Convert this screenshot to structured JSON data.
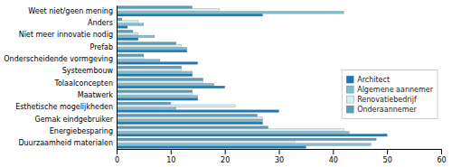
{
  "chart_data": {
    "type": "bar",
    "orientation": "horizontal",
    "categories": [
      "Duurzaamheid materialen",
      "Energiebesparing",
      "Gemak eindgebruiker",
      "Esthetische mogelijkheden",
      "Maatwerk",
      "Tolaalconcepten",
      "Systeembouw",
      "Onderscheidende vormgeving",
      "Prefab",
      "Niet meer innovatie nodig",
      "Anders",
      "Weet niet/geen mening"
    ],
    "series": [
      {
        "name": "Architect",
        "color": "#1a7ab5",
        "values": [
          35,
          50,
          27,
          30,
          15,
          20,
          14,
          15,
          13,
          4,
          2,
          27
        ]
      },
      {
        "name": "Algemene aannemer",
        "color": "#7bbfd4",
        "values": [
          47,
          43,
          27,
          11,
          15,
          18,
          14,
          8,
          13,
          7,
          5,
          42
        ]
      },
      {
        "name": "Renovatiebedrijf",
        "color": "#d8eef7",
        "values": [
          33,
          42,
          27,
          22,
          14,
          16,
          12,
          5,
          12,
          4,
          4,
          19
        ]
      },
      {
        "name": "Onderaannemer",
        "color": "#5b9db8",
        "values": [
          48,
          28,
          26,
          10,
          14,
          16,
          12,
          5,
          11,
          3,
          1,
          14
        ]
      }
    ],
    "xlim": [
      0,
      60
    ],
    "xticks": [
      0,
      10,
      20,
      30,
      40,
      50,
      60
    ],
    "grid": false,
    "legend": "right"
  }
}
